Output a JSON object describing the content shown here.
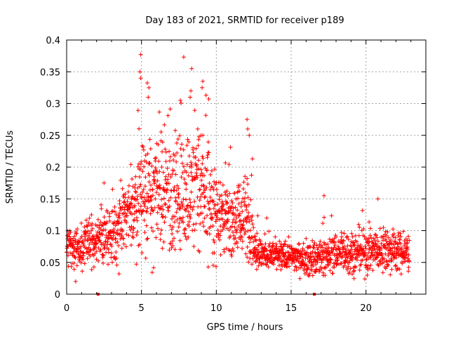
{
  "chart_data": {
    "type": "scatter",
    "title": "Day 183 of 2021, SRMTID for receiver p189",
    "xlabel": "GPS time / hours",
    "ylabel": "SRMTID / TECUs",
    "xlim": [
      0,
      24
    ],
    "ylim": [
      0,
      0.4
    ],
    "grid": true,
    "marker": "plus",
    "color": "#ff0000",
    "x_ticks": [
      0,
      5,
      10,
      15,
      20
    ],
    "x_tick_labels": [
      "0",
      "5",
      "10",
      "15",
      "20"
    ],
    "y_ticks": [
      0,
      0.05,
      0.1,
      0.15,
      0.2,
      0.25,
      0.3,
      0.35,
      0.4
    ],
    "y_tick_labels": [
      "0",
      "0.05",
      "0.1",
      "0.15",
      "0.2",
      "0.25",
      "0.3",
      "0.35",
      "0.4"
    ],
    "envelope": {
      "description": "approximate point-cloud envelope (hour, mean SRMTID, spread) read from the figure",
      "hours": [
        0.0,
        0.5,
        1.0,
        1.5,
        2.0,
        2.5,
        3.0,
        3.5,
        4.0,
        4.5,
        5.0,
        5.5,
        6.0,
        6.5,
        7.0,
        7.5,
        8.0,
        8.5,
        9.0,
        9.5,
        10.0,
        10.5,
        11.0,
        11.5,
        12.0,
        12.4,
        12.5,
        13.0,
        14.0,
        15.0,
        16.0,
        17.0,
        17.5,
        18.0,
        19.0,
        20.0,
        21.0,
        22.0,
        22.9
      ],
      "mean": [
        0.075,
        0.072,
        0.07,
        0.08,
        0.085,
        0.09,
        0.095,
        0.105,
        0.12,
        0.14,
        0.16,
        0.16,
        0.15,
        0.155,
        0.155,
        0.16,
        0.165,
        0.16,
        0.165,
        0.15,
        0.13,
        0.125,
        0.125,
        0.12,
        0.12,
        0.12,
        0.07,
        0.065,
        0.06,
        0.06,
        0.055,
        0.055,
        0.06,
        0.065,
        0.065,
        0.068,
        0.07,
        0.068,
        0.065
      ],
      "spread": [
        0.02,
        0.02,
        0.02,
        0.025,
        0.025,
        0.03,
        0.03,
        0.035,
        0.04,
        0.05,
        0.06,
        0.065,
        0.06,
        0.06,
        0.06,
        0.065,
        0.065,
        0.06,
        0.065,
        0.055,
        0.045,
        0.04,
        0.04,
        0.04,
        0.045,
        0.045,
        0.02,
        0.018,
        0.016,
        0.016,
        0.016,
        0.018,
        0.02,
        0.02,
        0.02,
        0.022,
        0.022,
        0.02,
        0.02
      ]
    },
    "spikes": [
      {
        "x": 4.95,
        "y": 0.377
      },
      {
        "x": 4.9,
        "y": 0.35
      },
      {
        "x": 4.95,
        "y": 0.34
      },
      {
        "x": 5.5,
        "y": 0.325
      },
      {
        "x": 5.45,
        "y": 0.31
      },
      {
        "x": 8.3,
        "y": 0.32
      },
      {
        "x": 8.25,
        "y": 0.31
      },
      {
        "x": 9.1,
        "y": 0.335
      },
      {
        "x": 9.05,
        "y": 0.325
      },
      {
        "x": 7.6,
        "y": 0.305
      },
      {
        "x": 12.05,
        "y": 0.275
      },
      {
        "x": 12.1,
        "y": 0.26
      },
      {
        "x": 12.2,
        "y": 0.25
      },
      {
        "x": 2.5,
        "y": 0.175
      },
      {
        "x": 17.2,
        "y": 0.155
      },
      {
        "x": 20.8,
        "y": 0.15
      },
      {
        "x": 0.6,
        "y": 0.02
      },
      {
        "x": 3.5,
        "y": 0.032
      }
    ],
    "baseline_markers": [
      2.1,
      16.55
    ]
  }
}
